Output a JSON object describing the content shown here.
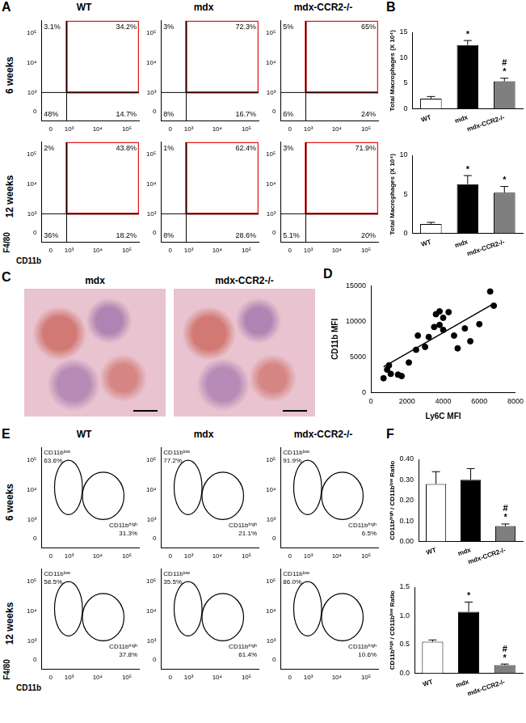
{
  "chart_data": [
    {
      "panel": "A",
      "type": "flow",
      "title": "WT",
      "row_label": "6 weeks",
      "log": true,
      "xlim": [
        -400,
        260000
      ],
      "ylim": [
        -400,
        260000
      ],
      "xticks": [
        0,
        {
          "value": 1000,
          "label": "10³"
        },
        {
          "value": 10000,
          "label": "10⁴"
        },
        {
          "value": 100000,
          "label": "10⁵"
        }
      ],
      "yticks": [
        0,
        {
          "value": 1000,
          "label": "10³"
        },
        {
          "value": 10000,
          "label": "10⁴"
        },
        {
          "value": 100000,
          "label": "10⁵"
        }
      ],
      "quadrant": {
        "x": 800,
        "y": 1000
      },
      "gate": {
        "x": [
          800,
          260000
        ],
        "y": [
          1000,
          260000
        ],
        "color": "#e41a1c"
      },
      "annotations": [
        {
          "text": "3.1%",
          "position": "upper left"
        },
        {
          "text": "34.2%",
          "position": "upper right"
        },
        {
          "text": "48%",
          "position": "lower left"
        },
        {
          "text": "14.7%",
          "position": "lower right"
        }
      ]
    },
    {
      "type": "flow",
      "title": "mdx",
      "log": true,
      "xlim": [
        -400,
        260000
      ],
      "ylim": [
        -400,
        260000
      ],
      "xticks": [
        0,
        {
          "value": 1000,
          "label": "10³"
        },
        {
          "value": 10000,
          "label": "10⁴"
        },
        {
          "value": 100000,
          "label": "10⁵"
        }
      ],
      "yticks": [
        0,
        {
          "value": 1000,
          "label": "10³"
        },
        {
          "value": 10000,
          "label": "10⁴"
        },
        {
          "value": 100000,
          "label": "10⁵"
        }
      ],
      "quadrant": {
        "x": 800,
        "y": 1000
      },
      "gate": {
        "x": [
          800,
          260000
        ],
        "y": [
          1000,
          260000
        ],
        "color": "#e41a1c"
      },
      "annotations": [
        {
          "text": "3%",
          "position": "upper left"
        },
        {
          "text": "72.3%",
          "position": "upper right"
        },
        {
          "text": "8%",
          "position": "lower left"
        },
        {
          "text": "16.7%",
          "position": "lower right"
        }
      ]
    },
    {
      "type": "flow",
      "title": "mdx-CCR2-/-",
      "log": true,
      "xlim": [
        -400,
        260000
      ],
      "ylim": [
        -400,
        260000
      ],
      "xticks": [
        0,
        {
          "value": 1000,
          "label": "10³"
        },
        {
          "value": 10000,
          "label": "10⁴"
        },
        {
          "value": 100000,
          "label": "10⁵"
        }
      ],
      "yticks": [
        0,
        {
          "value": 1000,
          "label": "10³"
        },
        {
          "value": 10000,
          "label": "10⁴"
        },
        {
          "value": 100000,
          "label": "10⁵"
        }
      ],
      "quadrant": {
        "x": 800,
        "y": 1000
      },
      "gate": {
        "x": [
          800,
          260000
        ],
        "y": [
          1000,
          260000
        ],
        "color": "#e41a1c"
      },
      "annotations": [
        {
          "text": "5%",
          "position": "upper left"
        },
        {
          "text": "65%",
          "position": "upper right"
        },
        {
          "text": "6%",
          "position": "lower left"
        },
        {
          "text": "24%",
          "position": "lower right"
        }
      ]
    },
    {
      "type": "flow",
      "row_label": "12 weeks",
      "x_label": "CD11b",
      "y_label": "F4/80",
      "log": true,
      "xlim": [
        -400,
        260000
      ],
      "ylim": [
        -400,
        260000
      ],
      "xticks": [
        0,
        {
          "value": 1000,
          "label": "10³"
        },
        {
          "value": 10000,
          "label": "10⁴"
        },
        {
          "value": 100000,
          "label": "10⁵"
        }
      ],
      "yticks": [
        0,
        {
          "value": 1000,
          "label": "10³"
        },
        {
          "value": 10000,
          "label": "10⁴"
        },
        {
          "value": 100000,
          "label": "10⁵"
        }
      ],
      "quadrant": {
        "x": 800,
        "y": 1000
      },
      "gate": {
        "x": [
          800,
          260000
        ],
        "y": [
          1000,
          260000
        ],
        "color": "#e41a1c"
      },
      "annotations": [
        {
          "text": "2%",
          "position": "upper left"
        },
        {
          "text": "43.8%",
          "position": "upper right"
        },
        {
          "text": "36%",
          "position": "lower left"
        },
        {
          "text": "18.2%",
          "position": "lower right"
        }
      ]
    },
    {
      "type": "flow",
      "log": true,
      "xlim": [
        -400,
        260000
      ],
      "ylim": [
        -400,
        260000
      ],
      "xticks": [
        0,
        {
          "value": 1000,
          "label": "10³"
        },
        {
          "value": 10000,
          "label": "10⁴"
        },
        {
          "value": 100000,
          "label": "10⁵"
        }
      ],
      "yticks": [
        0,
        {
          "value": 1000,
          "label": "10³"
        },
        {
          "value": 10000,
          "label": "10⁴"
        },
        {
          "value": 100000,
          "label": "10⁵"
        }
      ],
      "quadrant": {
        "x": 800,
        "y": 1000
      },
      "gate": {
        "x": [
          800,
          260000
        ],
        "y": [
          1000,
          260000
        ],
        "color": "#e41a1c"
      },
      "annotations": [
        {
          "text": "1%",
          "position": "upper left"
        },
        {
          "text": "62.4%",
          "position": "upper right"
        },
        {
          "text": "8%",
          "position": "lower left"
        },
        {
          "text": "28.6%",
          "position": "lower right"
        }
      ]
    },
    {
      "type": "flow",
      "log": true,
      "xlim": [
        -400,
        260000
      ],
      "ylim": [
        -400,
        260000
      ],
      "xticks": [
        0,
        {
          "value": 1000,
          "label": "10³"
        },
        {
          "value": 10000,
          "label": "10⁴"
        },
        {
          "value": 100000,
          "label": "10⁵"
        }
      ],
      "yticks": [
        0,
        {
          "value": 1000,
          "label": "10³"
        },
        {
          "value": 10000,
          "label": "10⁴"
        },
        {
          "value": 100000,
          "label": "10⁵"
        }
      ],
      "quadrant": {
        "x": 800,
        "y": 1000
      },
      "gate": {
        "x": [
          800,
          260000
        ],
        "y": [
          1000,
          260000
        ],
        "color": "#e41a1c"
      },
      "annotations": [
        {
          "text": "3%",
          "position": "upper left"
        },
        {
          "text": "71.9%",
          "position": "upper right"
        },
        {
          "text": "5.1%",
          "position": "lower left"
        },
        {
          "text": "20%",
          "position": "lower right"
        }
      ]
    },
    {
      "panel": "B",
      "type": "bar",
      "categories": [
        "WT",
        "mdx",
        "mdx-CCR2-/-"
      ],
      "values": [
        2.0,
        12.5,
        5.4
      ],
      "errors": [
        0.4,
        0.9,
        0.6
      ],
      "colors": [
        "#ffffff",
        "#000000",
        "#7f7f7f"
      ],
      "ylim": [
        0,
        15
      ],
      "yticks": [
        0,
        5,
        10,
        15
      ],
      "grid": false,
      "y_label": "Total Macrophages (X 10⁴)",
      "annotations": [
        {
          "category": "mdx",
          "text": "*"
        },
        {
          "category": "mdx-CCR2-/-",
          "text": "*"
        },
        {
          "category": "mdx-CCR2-/-",
          "text": "#"
        }
      ]
    },
    {
      "type": "bar",
      "categories": [
        "WT",
        "mdx",
        "mdx-CCR2-/-"
      ],
      "values": [
        1.2,
        6.3,
        5.2
      ],
      "errors": [
        0.2,
        1.1,
        0.8
      ],
      "colors": [
        "#ffffff",
        "#000000",
        "#7f7f7f"
      ],
      "ylim": [
        0,
        10
      ],
      "yticks": [
        0,
        5,
        10
      ],
      "grid": false,
      "y_label": "Total Macrophages (X 10⁴)",
      "annotations": [
        {
          "category": "mdx",
          "text": "*"
        },
        {
          "category": "mdx-CCR2-/-",
          "text": "*"
        }
      ]
    },
    {
      "panel": "D",
      "type": "scatter",
      "x_label": "Ly6C MFI",
      "y_label": "CD11b MFI",
      "color": "#000000",
      "x": [
        700,
        900,
        1000,
        1100,
        1500,
        1700,
        2100,
        2500,
        2600,
        3000,
        3200,
        3500,
        3600,
        3800,
        3800,
        4000,
        4000,
        4300,
        4600,
        4800,
        5200,
        5500,
        6000,
        6600,
        6800
      ],
      "values": [
        2000,
        3200,
        3800,
        2600,
        2500,
        2300,
        4200,
        6000,
        8000,
        6400,
        7800,
        9200,
        11000,
        11400,
        9500,
        10500,
        8800,
        11300,
        8000,
        6200,
        9000,
        7200,
        9600,
        14200,
        12200
      ],
      "fit": {
        "x": [
          700,
          6800
        ],
        "y": [
          3600,
          12500
        ]
      },
      "xlim": [
        0,
        8000
      ],
      "xticks": [
        0,
        2000,
        4000,
        6000,
        8000
      ],
      "ylim": [
        0,
        15000
      ],
      "yticks": [
        0,
        5000,
        10000,
        15000
      ],
      "grid": false
    },
    {
      "panel": "E",
      "type": "flow",
      "title": "WT",
      "row_label": "6 weeks",
      "log": true,
      "xlim": [
        -400,
        260000
      ],
      "ylim": [
        -400,
        260000
      ],
      "xticks": [
        0,
        {
          "value": 1000,
          "label": "10³"
        },
        {
          "value": 10000,
          "label": "10⁴"
        },
        {
          "value": 100000,
          "label": "10⁵"
        }
      ],
      "yticks": [
        0,
        {
          "value": 1000,
          "label": "10³"
        },
        {
          "value": 10000,
          "label": "10⁴"
        },
        {
          "value": 100000,
          "label": "10⁵"
        }
      ],
      "gates": [
        {
          "name": "CD11bˡᵒʷ",
          "label": "63.6%",
          "x": [
            150,
            3000
          ],
          "y": [
            1500,
            100000
          ]
        },
        {
          "name": "CD11bʰⁱᵍʰ",
          "label": "31.3%",
          "x": [
            3000,
            80000
          ],
          "y": [
            1000,
            40000
          ]
        }
      ]
    },
    {
      "type": "flow",
      "title": "mdx",
      "log": true,
      "xlim": [
        -400,
        260000
      ],
      "ylim": [
        -400,
        260000
      ],
      "xticks": [
        0,
        {
          "value": 1000,
          "label": "10³"
        },
        {
          "value": 10000,
          "label": "10⁴"
        },
        {
          "value": 100000,
          "label": "10⁵"
        }
      ],
      "yticks": [
        0,
        {
          "value": 1000,
          "label": "10³"
        },
        {
          "value": 10000,
          "label": "10⁴"
        },
        {
          "value": 100000,
          "label": "10⁵"
        }
      ],
      "gates": [
        {
          "name": "CD11bˡᵒʷ",
          "label": "77.2%",
          "x": [
            150,
            3000
          ],
          "y": [
            1500,
            100000
          ]
        },
        {
          "name": "CD11bʰⁱᵍʰ",
          "label": "21.1%",
          "x": [
            3000,
            80000
          ],
          "y": [
            1000,
            40000
          ]
        }
      ]
    },
    {
      "type": "flow",
      "title": "mdx-CCR2-/-",
      "log": true,
      "xlim": [
        -400,
        260000
      ],
      "ylim": [
        -400,
        260000
      ],
      "xticks": [
        0,
        {
          "value": 1000,
          "label": "10³"
        },
        {
          "value": 10000,
          "label": "10⁴"
        },
        {
          "value": 100000,
          "label": "10⁵"
        }
      ],
      "yticks": [
        0,
        {
          "value": 1000,
          "label": "10³"
        },
        {
          "value": 10000,
          "label": "10⁴"
        },
        {
          "value": 100000,
          "label": "10⁵"
        }
      ],
      "gates": [
        {
          "name": "CD11bˡᵒʷ",
          "label": "91.9%",
          "x": [
            150,
            3000
          ],
          "y": [
            1500,
            100000
          ]
        },
        {
          "name": "CD11bʰⁱᵍʰ",
          "label": "6.5%",
          "x": [
            3000,
            80000
          ],
          "y": [
            1000,
            40000
          ]
        }
      ]
    },
    {
      "type": "flow",
      "row_label": "12 weeks",
      "x_label": "CD11b",
      "y_label": "F4/80",
      "log": true,
      "xlim": [
        -400,
        260000
      ],
      "ylim": [
        -400,
        260000
      ],
      "xticks": [
        0,
        {
          "value": 1000,
          "label": "10³"
        },
        {
          "value": 10000,
          "label": "10⁴"
        },
        {
          "value": 100000,
          "label": "10⁵"
        }
      ],
      "yticks": [
        0,
        {
          "value": 1000,
          "label": "10³"
        },
        {
          "value": 10000,
          "label": "10⁴"
        },
        {
          "value": 100000,
          "label": "10⁵"
        }
      ],
      "gates": [
        {
          "name": "CD11bˡᵒʷ",
          "label": "58.5%",
          "x": [
            150,
            3000
          ],
          "y": [
            1500,
            100000
          ]
        },
        {
          "name": "CD11bʰⁱᵍʰ",
          "label": "37.8%",
          "x": [
            3000,
            80000
          ],
          "y": [
            1000,
            40000
          ]
        }
      ]
    },
    {
      "type": "flow",
      "log": true,
      "xlim": [
        -400,
        260000
      ],
      "ylim": [
        -400,
        260000
      ],
      "xticks": [
        0,
        {
          "value": 1000,
          "label": "10³"
        },
        {
          "value": 10000,
          "label": "10⁴"
        },
        {
          "value": 100000,
          "label": "10⁵"
        }
      ],
      "yticks": [
        0,
        {
          "value": 1000,
          "label": "10³"
        },
        {
          "value": 10000,
          "label": "10⁴"
        },
        {
          "value": 100000,
          "label": "10⁵"
        }
      ],
      "gates": [
        {
          "name": "CD11bˡᵒʷ",
          "label": "35.5%",
          "x": [
            150,
            3000
          ],
          "y": [
            1500,
            100000
          ]
        },
        {
          "name": "CD11bʰⁱᵍʰ",
          "label": "61.4%",
          "x": [
            3000,
            80000
          ],
          "y": [
            1000,
            40000
          ]
        }
      ]
    },
    {
      "type": "flow",
      "log": true,
      "xlim": [
        -400,
        260000
      ],
      "ylim": [
        -400,
        260000
      ],
      "xticks": [
        0,
        {
          "value": 1000,
          "label": "10³"
        },
        {
          "value": 10000,
          "label": "10⁴"
        },
        {
          "value": 100000,
          "label": "10⁵"
        }
      ],
      "yticks": [
        0,
        {
          "value": 1000,
          "label": "10³"
        },
        {
          "value": 10000,
          "label": "10⁴"
        },
        {
          "value": 100000,
          "label": "10⁵"
        }
      ],
      "gates": [
        {
          "name": "CD11bˡᵒʷ",
          "label": "86.0%",
          "x": [
            150,
            3000
          ],
          "y": [
            1500,
            100000
          ]
        },
        {
          "name": "CD11bʰⁱᵍʰ",
          "label": "10.6%",
          "x": [
            3000,
            80000
          ],
          "y": [
            1000,
            40000
          ]
        }
      ]
    },
    {
      "panel": "F",
      "type": "bar",
      "categories": [
        "WT",
        "mdx",
        "mdx-CCR2-/-"
      ],
      "values": [
        0.28,
        0.3,
        0.075
      ],
      "errors": [
        0.06,
        0.055,
        0.01
      ],
      "colors": [
        "#ffffff",
        "#000000",
        "#7f7f7f"
      ],
      "ylim": [
        0,
        0.4
      ],
      "yticks": [
        {
          "value": 0,
          "label": "0.00"
        },
        {
          "value": 0.1,
          "label": "0.10"
        },
        {
          "value": 0.2,
          "label": "0.20"
        },
        {
          "value": 0.3,
          "label": "0.30"
        },
        {
          "value": 0.4,
          "label": "0.40"
        }
      ],
      "grid": false,
      "y_label": "CD11bʰⁱᵍʰ / CD11bˡᵒʷ Ratio",
      "annotations": [
        {
          "category": "mdx-CCR2-/-",
          "text": "*"
        },
        {
          "category": "mdx-CCR2-/-",
          "text": "#"
        }
      ]
    },
    {
      "type": "bar",
      "categories": [
        "WT",
        "mdx",
        "mdx-CCR2-/-"
      ],
      "values": [
        0.55,
        1.07,
        0.14
      ],
      "errors": [
        0.03,
        0.17,
        0.02
      ],
      "colors": [
        "#ffffff",
        "#000000",
        "#7f7f7f"
      ],
      "ylim": [
        0,
        1.5
      ],
      "yticks": [
        {
          "value": 0,
          "label": "0.0"
        },
        {
          "value": 0.5,
          "label": "0.5"
        },
        {
          "value": 1,
          "label": "1.0"
        },
        {
          "value": 1.5,
          "label": "1.5"
        }
      ],
      "grid": false,
      "y_label": "CD11bʰⁱᵍʰ / CD11bˡᵒʷ Ratio",
      "annotations": [
        {
          "category": "mdx",
          "text": "*"
        },
        {
          "category": "mdx-CCR2-/-",
          "text": "*"
        },
        {
          "category": "mdx-CCR2-/-",
          "text": "#"
        }
      ]
    }
  ],
  "images": {
    "panel": "C",
    "titles": [
      "mdx",
      "mdx-CCR2-/-"
    ]
  }
}
